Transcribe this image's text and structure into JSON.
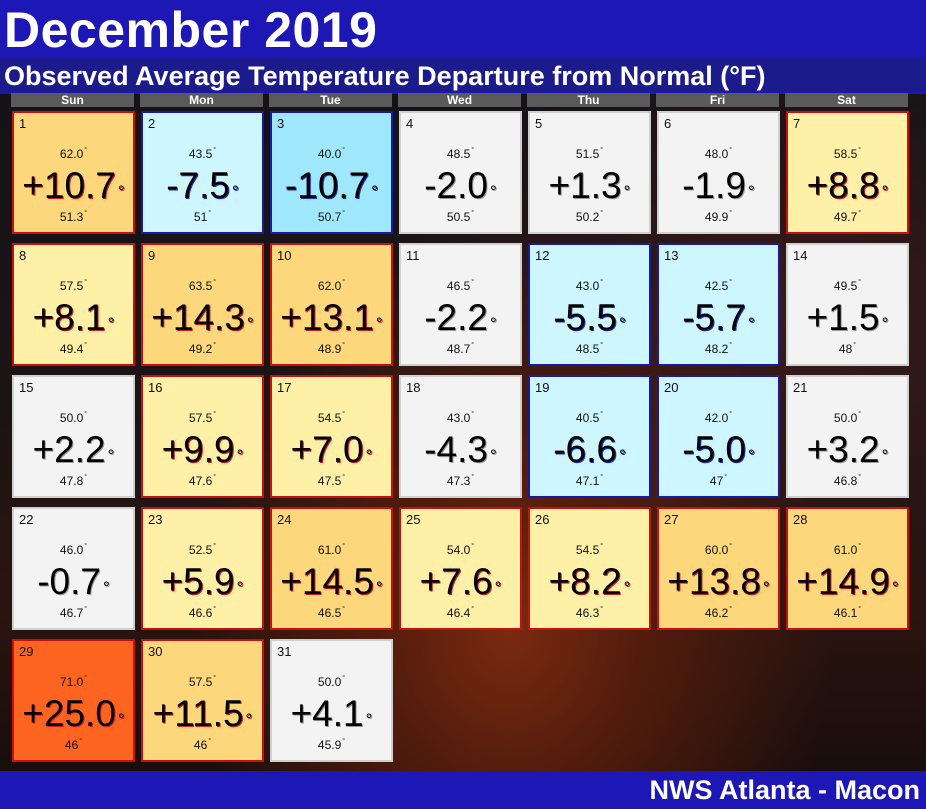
{
  "header": {
    "title": "December 2019",
    "subtitle": "Observed Average Temperature Departure from Normal (°F)"
  },
  "weekdays": [
    "Sun",
    "Mon",
    "Tue",
    "Wed",
    "Thu",
    "Fri",
    "Sat"
  ],
  "colors": {
    "header_blue": "#1d17b6",
    "neutral": "#f3f3f3",
    "cool_light": "#cdf6ff",
    "cool_mid": "#9fe8fb",
    "warm_light": "#fff0a8",
    "warm_mid": "#fdd77c",
    "warm_hot": "#fc6420"
  },
  "days": [
    {
      "day": "1",
      "hi": "62.0",
      "dep": "+10.7",
      "lo": "51.3",
      "cls": "warm2"
    },
    {
      "day": "2",
      "hi": "43.5",
      "dep": "-7.5",
      "lo": "51",
      "cls": "cool1"
    },
    {
      "day": "3",
      "hi": "40.0",
      "dep": "-10.7",
      "lo": "50.7",
      "cls": "cool2"
    },
    {
      "day": "4",
      "hi": "48.5",
      "dep": "-2.0",
      "lo": "50.5",
      "cls": "neutral"
    },
    {
      "day": "5",
      "hi": "51.5",
      "dep": "+1.3",
      "lo": "50.2",
      "cls": "neutral"
    },
    {
      "day": "6",
      "hi": "48.0",
      "dep": "-1.9",
      "lo": "49.9",
      "cls": "neutral"
    },
    {
      "day": "7",
      "hi": "58.5",
      "dep": "+8.8",
      "lo": "49.7",
      "cls": "warm1"
    },
    {
      "day": "8",
      "hi": "57.5",
      "dep": "+8.1",
      "lo": "49.4",
      "cls": "warm1"
    },
    {
      "day": "9",
      "hi": "63.5",
      "dep": "+14.3",
      "lo": "49.2",
      "cls": "warm2"
    },
    {
      "day": "10",
      "hi": "62.0",
      "dep": "+13.1",
      "lo": "48.9",
      "cls": "warm2"
    },
    {
      "day": "11",
      "hi": "46.5",
      "dep": "-2.2",
      "lo": "48.7",
      "cls": "neutral"
    },
    {
      "day": "12",
      "hi": "43.0",
      "dep": "-5.5",
      "lo": "48.5",
      "cls": "cool1"
    },
    {
      "day": "13",
      "hi": "42.5",
      "dep": "-5.7",
      "lo": "48.2",
      "cls": "cool1"
    },
    {
      "day": "14",
      "hi": "49.5",
      "dep": "+1.5",
      "lo": "48",
      "cls": "neutral"
    },
    {
      "day": "15",
      "hi": "50.0",
      "dep": "+2.2",
      "lo": "47.8",
      "cls": "neutral"
    },
    {
      "day": "16",
      "hi": "57.5",
      "dep": "+9.9",
      "lo": "47.6",
      "cls": "warm1"
    },
    {
      "day": "17",
      "hi": "54.5",
      "dep": "+7.0",
      "lo": "47.5",
      "cls": "warm1"
    },
    {
      "day": "18",
      "hi": "43.0",
      "dep": "-4.3",
      "lo": "47.3",
      "cls": "neutral"
    },
    {
      "day": "19",
      "hi": "40.5",
      "dep": "-6.6",
      "lo": "47.1",
      "cls": "cool1"
    },
    {
      "day": "20",
      "hi": "42.0",
      "dep": "-5.0",
      "lo": "47",
      "cls": "cool1"
    },
    {
      "day": "21",
      "hi": "50.0",
      "dep": "+3.2",
      "lo": "46.8",
      "cls": "neutral"
    },
    {
      "day": "22",
      "hi": "46.0",
      "dep": "-0.7",
      "lo": "46.7",
      "cls": "neutral"
    },
    {
      "day": "23",
      "hi": "52.5",
      "dep": "+5.9",
      "lo": "46.6",
      "cls": "warm1"
    },
    {
      "day": "24",
      "hi": "61.0",
      "dep": "+14.5",
      "lo": "46.5",
      "cls": "warm2"
    },
    {
      "day": "25",
      "hi": "54.0",
      "dep": "+7.6",
      "lo": "46.4",
      "cls": "warm1"
    },
    {
      "day": "26",
      "hi": "54.5",
      "dep": "+8.2",
      "lo": "46.3",
      "cls": "warm1"
    },
    {
      "day": "27",
      "hi": "60.0",
      "dep": "+13.8",
      "lo": "46.2",
      "cls": "warm2"
    },
    {
      "day": "28",
      "hi": "61.0",
      "dep": "+14.9",
      "lo": "46.1",
      "cls": "warm2"
    },
    {
      "day": "29",
      "hi": "71.0",
      "dep": "+25.0",
      "lo": "46",
      "cls": "warm4"
    },
    {
      "day": "30",
      "hi": "57.5",
      "dep": "+11.5",
      "lo": "46",
      "cls": "warm2"
    },
    {
      "day": "31",
      "hi": "50.0",
      "dep": "+4.1",
      "lo": "45.9",
      "cls": "neutral"
    }
  ],
  "footer": {
    "credit": "NWS Atlanta - Macon"
  }
}
